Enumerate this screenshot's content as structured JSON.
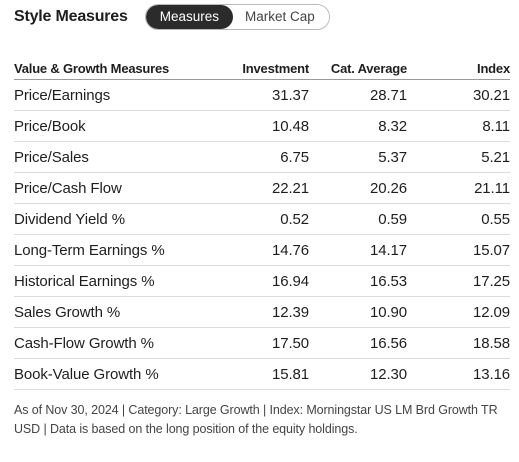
{
  "header": {
    "title": "Style Measures",
    "toggle": {
      "active": "Measures",
      "inactive": "Market Cap"
    }
  },
  "table": {
    "columns": [
      "Value & Growth Measures",
      "Investment",
      "Cat. Average",
      "Index"
    ],
    "rows": [
      {
        "label": "Price/Earnings",
        "investment": "31.37",
        "cat_average": "28.71",
        "index": "30.21"
      },
      {
        "label": "Price/Book",
        "investment": "10.48",
        "cat_average": "8.32",
        "index": "8.11"
      },
      {
        "label": "Price/Sales",
        "investment": "6.75",
        "cat_average": "5.37",
        "index": "5.21"
      },
      {
        "label": "Price/Cash Flow",
        "investment": "22.21",
        "cat_average": "20.26",
        "index": "21.11"
      },
      {
        "label": "Dividend Yield %",
        "investment": "0.52",
        "cat_average": "0.59",
        "index": "0.55"
      },
      {
        "label": "Long-Term Earnings %",
        "investment": "14.76",
        "cat_average": "14.17",
        "index": "15.07"
      },
      {
        "label": "Historical Earnings %",
        "investment": "16.94",
        "cat_average": "16.53",
        "index": "17.25"
      },
      {
        "label": "Sales Growth %",
        "investment": "12.39",
        "cat_average": "10.90",
        "index": "12.09"
      },
      {
        "label": "Cash-Flow Growth %",
        "investment": "17.50",
        "cat_average": "16.56",
        "index": "18.58"
      },
      {
        "label": "Book-Value Growth %",
        "investment": "15.81",
        "cat_average": "12.30",
        "index": "13.16"
      }
    ]
  },
  "footnote": "As of Nov 30, 2024 | Category: Large Growth | Index: Morningstar US LM Brd Growth TR USD | Data is based on the long position of the equity holdings."
}
